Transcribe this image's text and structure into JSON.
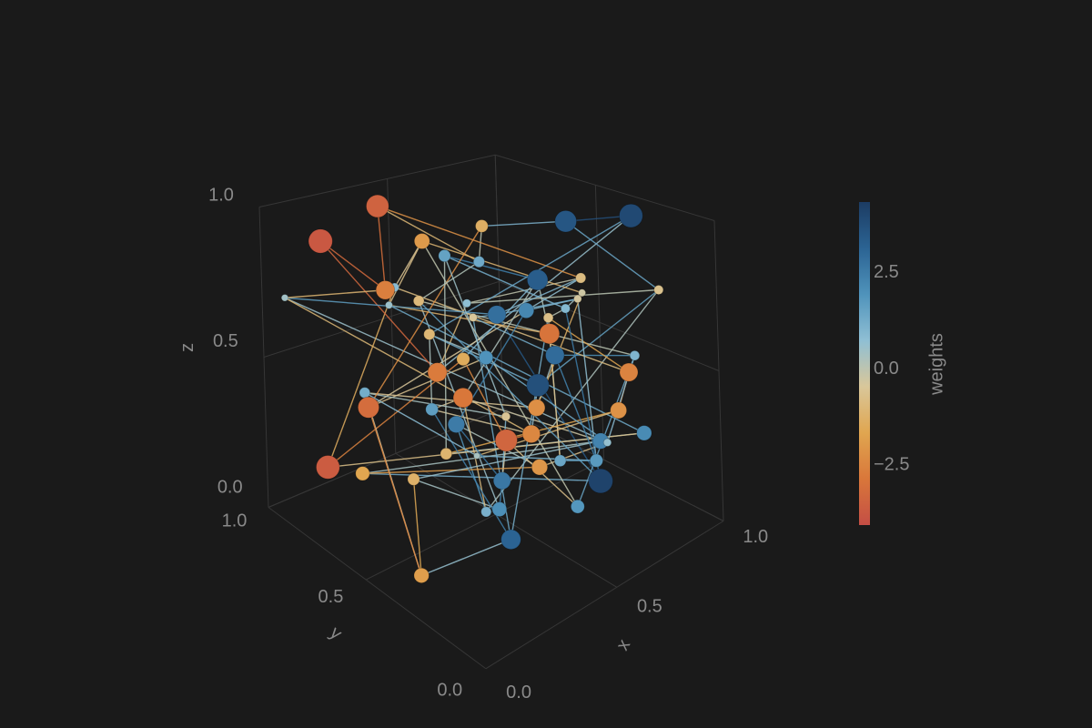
{
  "chart_data": {
    "type": "network3d",
    "xlabel": "x",
    "ylabel": "y",
    "zlabel": "z",
    "colorbar_label": "weights",
    "xlim": [
      0,
      1
    ],
    "ylim": [
      0,
      1
    ],
    "zlim": [
      0,
      1
    ],
    "xticks": [
      {
        "value": 0,
        "label": "0.0"
      },
      {
        "value": 0.5,
        "label": "0.5"
      },
      {
        "value": 1,
        "label": "1.0"
      }
    ],
    "yticks": [
      {
        "value": 0,
        "label": "0.0"
      },
      {
        "value": 0.5,
        "label": "0.5"
      },
      {
        "value": 1,
        "label": "1.0"
      }
    ],
    "zticks": [
      {
        "value": 0,
        "label": "0.0"
      },
      {
        "value": 0.5,
        "label": "0.5"
      },
      {
        "value": 1,
        "label": "1.0"
      }
    ],
    "clim": [
      -4.2,
      4.2
    ],
    "cticks": [
      {
        "value": -2.5,
        "label": "−2.5"
      },
      {
        "value": 0,
        "label": "0.0"
      },
      2.5
    ],
    "colormap": [
      "#c44e45",
      "#d9773a",
      "#e0a650",
      "#d9c79a",
      "#8fbfd4",
      "#4f93bb",
      "#2b6393",
      "#1c3c63"
    ],
    "grid": true,
    "x": [
      0.12,
      0.25,
      0.38,
      0.55,
      0.7,
      0.85,
      0.95,
      0.2,
      0.45,
      0.6,
      0.8,
      0.1,
      0.3,
      0.5,
      0.65,
      0.9,
      0.15,
      0.35,
      0.55,
      0.75,
      0.05,
      0.28,
      0.42,
      0.68,
      0.88,
      0.18,
      0.5,
      0.62,
      0.78,
      0.33,
      0.08,
      0.22,
      0.47,
      0.58,
      0.72,
      0.93,
      0.4,
      0.27,
      0.83,
      0.53,
      0.14,
      0.66,
      0.36,
      0.97,
      0.48,
      0.24,
      0.76,
      0.6,
      0.02,
      0.44,
      0.86,
      0.31,
      0.69,
      0.56,
      0.11,
      0.81,
      0.39,
      0.64,
      0.21,
      0.91,
      0.74
    ],
    "y": [
      0.85,
      0.7,
      0.9,
      0.6,
      0.75,
      0.5,
      0.3,
      0.4,
      0.55,
      0.2,
      0.65,
      0.6,
      0.3,
      0.8,
      0.45,
      0.15,
      0.15,
      0.5,
      0.35,
      0.25,
      0.95,
      0.1,
      0.7,
      0.85,
      0.4,
      0.75,
      0.05,
      0.6,
      0.9,
      0.25,
      0.35,
      0.55,
      0.45,
      0.95,
      0.1,
      0.65,
      0.2,
      0.85,
      0.8,
      0.5,
      0.05,
      0.3,
      0.65,
      0.55,
      0.15,
      0.4,
      0.55,
      0.75,
      0.7,
      0.9,
      0.25,
      0.05,
      0.4,
      0.3,
      0.5,
      0.15,
      0.6,
      0.1,
      0.25,
      0.45,
      0.35
    ],
    "z": [
      0.9,
      0.75,
      0.95,
      0.8,
      0.85,
      0.9,
      0.95,
      0.6,
      0.7,
      0.85,
      0.55,
      0.45,
      0.65,
      0.5,
      0.4,
      0.75,
      0.3,
      0.35,
      0.2,
      0.25,
      0.7,
      0.5,
      0.3,
      0.2,
      0.15,
      0.15,
      0.3,
      0.6,
      0.45,
      0.1,
      0.05,
      0.2,
      0.05,
      0.55,
      0.6,
      0.35,
      0.5,
      0.35,
      0.1,
      0.1,
      0.55,
      0.05,
      0.9,
      0.6,
      0.8,
      0.95,
      0.7,
      0.4,
      0.25,
      0.65,
      0.45,
      0.85,
      0.15,
      0.65,
      0.8,
      0.3,
      0.2,
      0.45,
      0.4,
      0.05,
      0.7
    ],
    "weights": [
      -3.9,
      -2.8,
      -3.6,
      1.2,
      -1.5,
      3.4,
      3.8,
      -2.9,
      0.6,
      -1.0,
      2.1,
      -3.3,
      1.8,
      -1.2,
      3.6,
      -0.8,
      1.0,
      2.4,
      -2.2,
      0.5,
      0.3,
      -2.6,
      1.5,
      -3.0,
      2.2,
      -1.8,
      4.0,
      2.7,
      -0.6,
      3.0,
      -2.0,
      -1.4,
      1.9,
      -1.1,
      0.9,
      2.8,
      -2.4,
      1.1,
      -0.7,
      2.5,
      -3.5,
      1.7,
      -2.1,
      -0.4,
      0.8,
      1.4,
      3.2,
      -1.6,
      -3.8,
      0.7,
      -2.7,
      -0.9,
      1.3,
      -3.1,
      0.4,
      2.0,
      -1.3,
      -2.3,
      0.2,
      1.6,
      -0.5
    ],
    "edges": [
      [
        0,
        1
      ],
      [
        1,
        2
      ],
      [
        2,
        3
      ],
      [
        3,
        4
      ],
      [
        4,
        5
      ],
      [
        5,
        6
      ],
      [
        6,
        7
      ],
      [
        7,
        8
      ],
      [
        8,
        9
      ],
      [
        9,
        10
      ],
      [
        10,
        11
      ],
      [
        11,
        12
      ],
      [
        12,
        13
      ],
      [
        13,
        14
      ],
      [
        14,
        15
      ],
      [
        15,
        16
      ],
      [
        16,
        17
      ],
      [
        17,
        18
      ],
      [
        18,
        19
      ],
      [
        19,
        20
      ],
      [
        20,
        21
      ],
      [
        21,
        22
      ],
      [
        22,
        23
      ],
      [
        23,
        24
      ],
      [
        24,
        25
      ],
      [
        25,
        26
      ],
      [
        26,
        27
      ],
      [
        27,
        28
      ],
      [
        28,
        29
      ],
      [
        29,
        30
      ],
      [
        30,
        31
      ],
      [
        31,
        32
      ],
      [
        32,
        33
      ],
      [
        33,
        34
      ],
      [
        34,
        35
      ],
      [
        35,
        36
      ],
      [
        36,
        37
      ],
      [
        37,
        38
      ],
      [
        38,
        39
      ],
      [
        39,
        40
      ],
      [
        40,
        41
      ],
      [
        41,
        42
      ],
      [
        42,
        43
      ],
      [
        43,
        44
      ],
      [
        44,
        45
      ],
      [
        45,
        46
      ],
      [
        46,
        47
      ],
      [
        47,
        48
      ],
      [
        48,
        49
      ],
      [
        49,
        50
      ],
      [
        50,
        51
      ],
      [
        51,
        52
      ],
      [
        52,
        53
      ],
      [
        53,
        54
      ],
      [
        54,
        55
      ],
      [
        55,
        56
      ],
      [
        56,
        57
      ],
      [
        57,
        58
      ],
      [
        58,
        59
      ],
      [
        59,
        60
      ],
      [
        0,
        7
      ],
      [
        2,
        9
      ],
      [
        4,
        11
      ],
      [
        6,
        13
      ],
      [
        8,
        15
      ],
      [
        10,
        17
      ],
      [
        12,
        19
      ],
      [
        14,
        21
      ],
      [
        16,
        23
      ],
      [
        18,
        25
      ],
      [
        20,
        27
      ],
      [
        22,
        29
      ],
      [
        24,
        31
      ],
      [
        26,
        33
      ],
      [
        28,
        35
      ],
      [
        30,
        37
      ],
      [
        32,
        39
      ],
      [
        34,
        41
      ],
      [
        36,
        43
      ],
      [
        38,
        45
      ],
      [
        40,
        47
      ],
      [
        42,
        49
      ],
      [
        44,
        51
      ],
      [
        46,
        53
      ],
      [
        48,
        55
      ],
      [
        50,
        57
      ],
      [
        52,
        59
      ],
      [
        1,
        20
      ],
      [
        3,
        33
      ],
      [
        5,
        15
      ],
      [
        9,
        27
      ],
      [
        11,
        30
      ],
      [
        13,
        22
      ],
      [
        17,
        39
      ],
      [
        19,
        34
      ],
      [
        21,
        40
      ],
      [
        23,
        46
      ],
      [
        26,
        44
      ],
      [
        29,
        51
      ],
      [
        35,
        59
      ],
      [
        37,
        58
      ],
      [
        42,
        54
      ],
      [
        45,
        56
      ],
      [
        60,
        10
      ],
      [
        60,
        27
      ]
    ]
  }
}
